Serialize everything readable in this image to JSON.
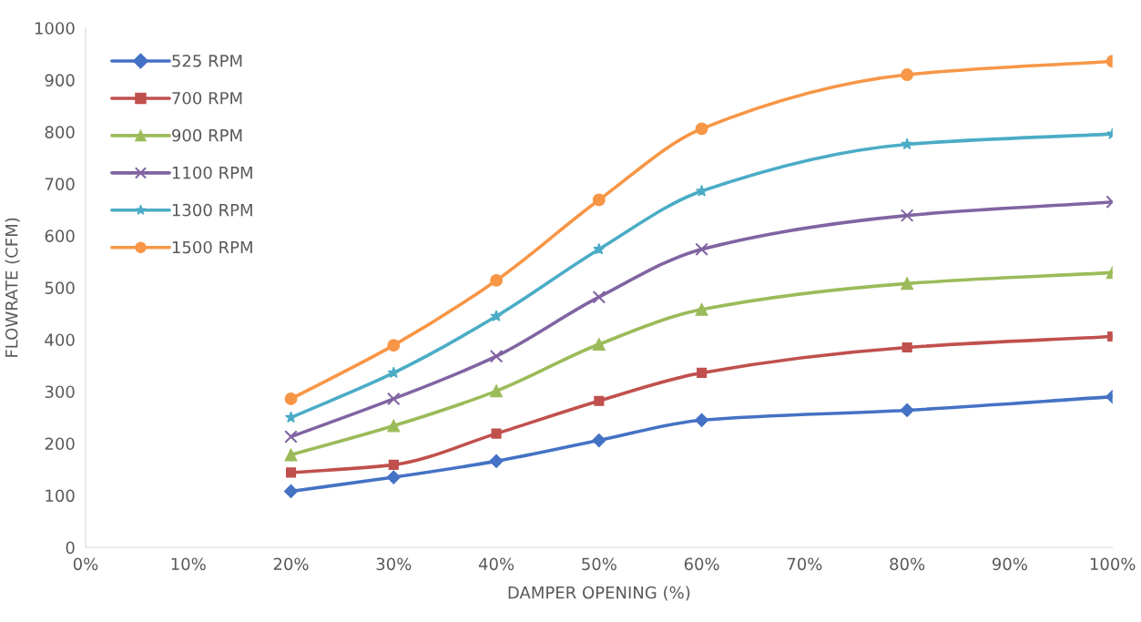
{
  "chart_data": {
    "type": "line",
    "xlabel": "DAMPER OPENING (%)",
    "ylabel": "FLOWRATE (CFM)",
    "x": [
      20,
      30,
      40,
      50,
      60,
      80,
      100
    ],
    "series": [
      {
        "name": "525 RPM",
        "color": "#4472c4",
        "marker": "diamond",
        "values": [
          108,
          135,
          166,
          206,
          245,
          264,
          290
        ]
      },
      {
        "name": "700 RPM",
        "color": "#c0504d",
        "marker": "square",
        "values": [
          144,
          159,
          219,
          282,
          336,
          385,
          406
        ]
      },
      {
        "name": "900 RPM",
        "color": "#9bbb59",
        "marker": "triangle",
        "values": [
          178,
          234,
          301,
          391,
          458,
          508,
          529
        ]
      },
      {
        "name": "1100 RPM",
        "color": "#8064a2",
        "marker": "cross",
        "values": [
          213,
          286,
          368,
          482,
          574,
          639,
          665
        ]
      },
      {
        "name": "1300 RPM",
        "color": "#4bacc6",
        "marker": "star",
        "values": [
          250,
          336,
          445,
          574,
          686,
          776,
          796
        ]
      },
      {
        "name": "1500 RPM",
        "color": "#f79646",
        "marker": "circle",
        "values": [
          286,
          389,
          514,
          669,
          806,
          910,
          936
        ]
      }
    ],
    "xlim": [
      0,
      100
    ],
    "xticks": [
      {
        "value": 0,
        "label": "0%"
      },
      {
        "value": 10,
        "label": "10%"
      },
      {
        "value": 20,
        "label": "20%"
      },
      {
        "value": 30,
        "label": "30%"
      },
      {
        "value": 40,
        "label": "40%"
      },
      {
        "value": 50,
        "label": "50%"
      },
      {
        "value": 60,
        "label": "60%"
      },
      {
        "value": 70,
        "label": "70%"
      },
      {
        "value": 80,
        "label": "80%"
      },
      {
        "value": 90,
        "label": "90%"
      },
      {
        "value": 100,
        "label": "100%"
      }
    ],
    "ylim": [
      0,
      1000
    ],
    "yticks": [
      0,
      100,
      200,
      300,
      400,
      500,
      600,
      700,
      800,
      900,
      1000
    ],
    "grid": false,
    "legend": "top left",
    "line_style": "solid"
  }
}
